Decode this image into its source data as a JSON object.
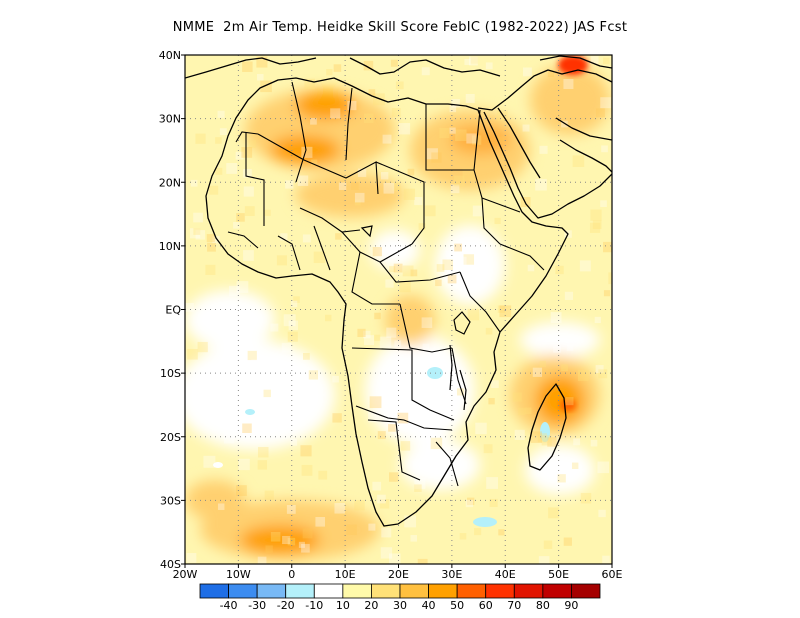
{
  "title": "NMME  2m Air Temp. Heidke Skill Score FebIC (1982-2022) JAS Fcst",
  "lat_ticks": [
    {
      "value": 40,
      "label": "40N"
    },
    {
      "value": 30,
      "label": "30N"
    },
    {
      "value": 20,
      "label": "20N"
    },
    {
      "value": 10,
      "label": "10N"
    },
    {
      "value": 0,
      "label": "EQ"
    },
    {
      "value": -10,
      "label": "10S"
    },
    {
      "value": -20,
      "label": "20S"
    },
    {
      "value": -30,
      "label": "30S"
    },
    {
      "value": -40,
      "label": "40S"
    }
  ],
  "lon_ticks": [
    {
      "value": -20,
      "label": "20W"
    },
    {
      "value": -10,
      "label": "10W"
    },
    {
      "value": 0,
      "label": "0"
    },
    {
      "value": 10,
      "label": "10E"
    },
    {
      "value": 20,
      "label": "20E"
    },
    {
      "value": 30,
      "label": "30E"
    },
    {
      "value": 40,
      "label": "40E"
    },
    {
      "value": 50,
      "label": "50E"
    },
    {
      "value": 60,
      "label": "60E"
    }
  ],
  "colorbar": {
    "colors": [
      "#1e6ee6",
      "#3c8cf0",
      "#78b9f5",
      "#b4f0fa",
      "#ffffff",
      "#fffaaa",
      "#ffe178",
      "#ffc040",
      "#ffa000",
      "#ff6000",
      "#ff3200",
      "#e11400",
      "#c00000",
      "#a50000"
    ],
    "labels": [
      "-40",
      "-30",
      "-20",
      "-10",
      "10",
      "20",
      "30",
      "40",
      "50",
      "60",
      "70",
      "80",
      "90"
    ]
  },
  "map_extent": {
    "lon_min": -20,
    "lon_max": 60,
    "lat_min": -40,
    "lat_max": 40
  }
}
